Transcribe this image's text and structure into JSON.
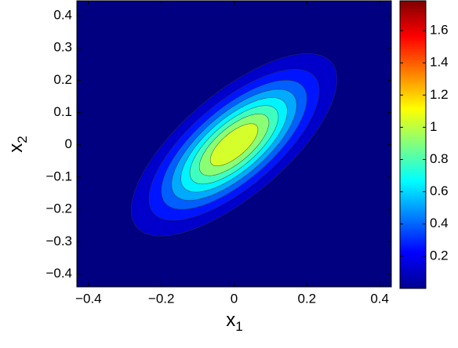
{
  "chart_data": {
    "type": "contour",
    "colormap": "jet",
    "mean": [
      0,
      0
    ],
    "cov": [
      [
        0.0182,
        0.013
      ],
      [
        0.013,
        0.0182
      ]
    ],
    "peak": 1.17,
    "levels": [
      0.13,
      0.26,
      0.39,
      0.52,
      0.65,
      0.78,
      0.91,
      1.04
    ],
    "clim": [
      0,
      1.785
    ],
    "xlim": [
      -0.432,
      0.432
    ],
    "ylim": [
      -0.44,
      0.446
    ],
    "xticks": [
      {
        "value": -0.4,
        "label": "−0.4"
      },
      {
        "value": -0.2,
        "label": "−0.2"
      },
      0,
      0.2,
      0.4
    ],
    "yticks": [
      {
        "value": -0.4,
        "label": "−0.4"
      },
      {
        "value": -0.3,
        "label": "−0.3"
      },
      {
        "value": -0.2,
        "label": "−0.2"
      },
      {
        "value": -0.1,
        "label": "−0.1"
      },
      0,
      0.1,
      0.2,
      0.3,
      0.4
    ],
    "colorbar_ticks": [
      0.2,
      0.4,
      0.6,
      0.8,
      1,
      1.2,
      1.4,
      1.6
    ],
    "xlabel": {
      "text": "x",
      "sub": "1"
    },
    "ylabel": {
      "text": "x",
      "sub": "2"
    }
  }
}
